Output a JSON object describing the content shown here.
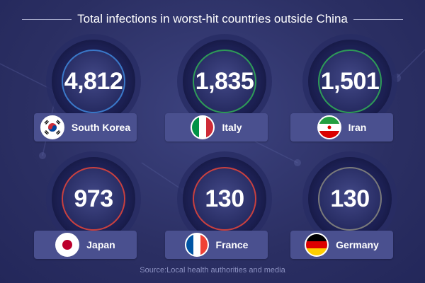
{
  "title": "Total infections in worst-hit countries outside China",
  "source": "Source:Local health authorities and media",
  "countries": [
    {
      "name": "South Korea",
      "value": "4,812",
      "flag_icon": "south-korea-flag-icon",
      "accent": "#3a78c9"
    },
    {
      "name": "Italy",
      "value": "1,835",
      "flag_icon": "italy-flag-icon",
      "accent": "#2e9b57"
    },
    {
      "name": "Iran",
      "value": "1,501",
      "flag_icon": "iran-flag-icon",
      "accent": "#2e9b57"
    },
    {
      "name": "Japan",
      "value": "973",
      "flag_icon": "japan-flag-icon",
      "accent": "#c9403f"
    },
    {
      "name": "France",
      "value": "130",
      "flag_icon": "france-flag-icon",
      "accent": "#c9403f"
    },
    {
      "name": "Germany",
      "value": "130",
      "flag_icon": "germany-flag-icon",
      "accent": "#7a7a7a"
    }
  ],
  "chart_data": {
    "type": "table",
    "title": "Total infections in worst-hit countries outside China",
    "categories": [
      "South Korea",
      "Italy",
      "Iran",
      "Japan",
      "France",
      "Germany"
    ],
    "values": [
      4812,
      1835,
      1501,
      973,
      130,
      130
    ]
  }
}
